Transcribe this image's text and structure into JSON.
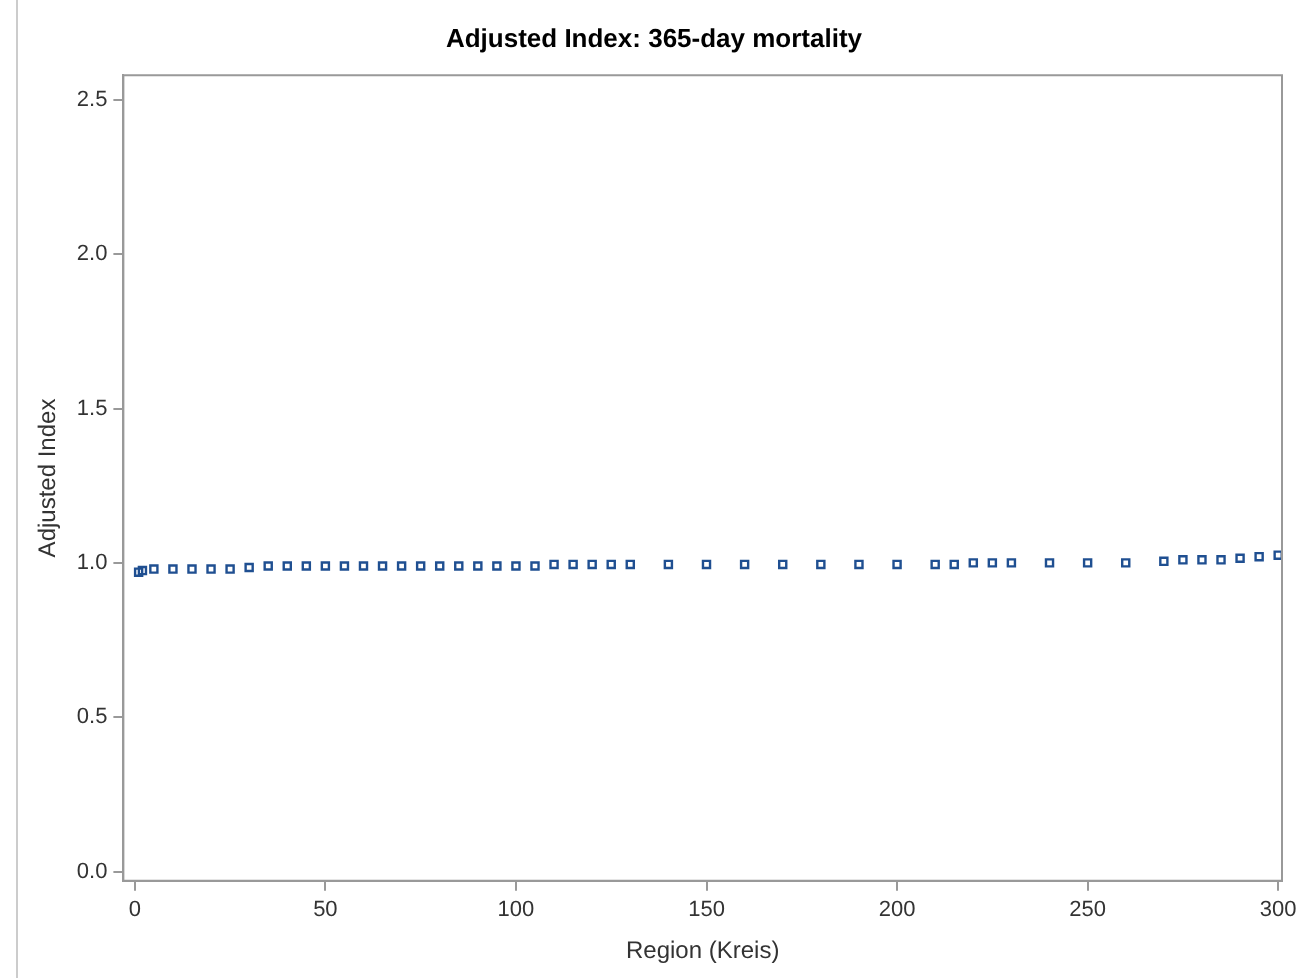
{
  "chart_data": {
    "type": "scatter",
    "title": "Adjusted Index: 365-day mortality",
    "xlabel": "Region (Kreis)",
    "ylabel": "Adjusted Index",
    "x": [
      1,
      2,
      5,
      10,
      15,
      20,
      25,
      30,
      35,
      40,
      45,
      50,
      55,
      60,
      65,
      70,
      75,
      80,
      85,
      90,
      95,
      100,
      105,
      110,
      115,
      120,
      125,
      130,
      140,
      150,
      160,
      170,
      180,
      190,
      200,
      210,
      215,
      220,
      225,
      230,
      240,
      250,
      260,
      270,
      275,
      280,
      285,
      290,
      295,
      300
    ],
    "series": [
      {
        "color": "#1f4f91",
        "values": [
          0.97,
          0.975,
          0.98,
          0.98,
          0.98,
          0.98,
          0.98,
          0.985,
          0.99,
          0.99,
          0.99,
          0.99,
          0.99,
          0.99,
          0.99,
          0.99,
          0.99,
          0.99,
          0.99,
          0.99,
          0.99,
          0.99,
          0.99,
          0.995,
          0.995,
          0.995,
          0.995,
          0.995,
          0.995,
          0.995,
          0.995,
          0.995,
          0.995,
          0.995,
          0.995,
          0.995,
          0.995,
          1.0,
          1.0,
          1.0,
          1.0,
          1.0,
          1.0,
          1.005,
          1.01,
          1.01,
          1.01,
          1.015,
          1.02,
          1.025
        ]
      }
    ],
    "marker": "square",
    "grid": false,
    "legend": false,
    "xlim": [
      -3,
      301
    ],
    "xticks": [
      0,
      50,
      100,
      150,
      200,
      250,
      300
    ],
    "ylim": [
      -0.03,
      2.58
    ],
    "yticks": [
      {
        "value": 0,
        "label": "0.0"
      },
      {
        "value": 0.5,
        "label": "0.5"
      },
      {
        "value": 1,
        "label": "1.0"
      },
      {
        "value": 1.5,
        "label": "1.5"
      },
      {
        "value": 2,
        "label": "2.0"
      },
      {
        "value": 2.5,
        "label": "2.5"
      }
    ]
  }
}
